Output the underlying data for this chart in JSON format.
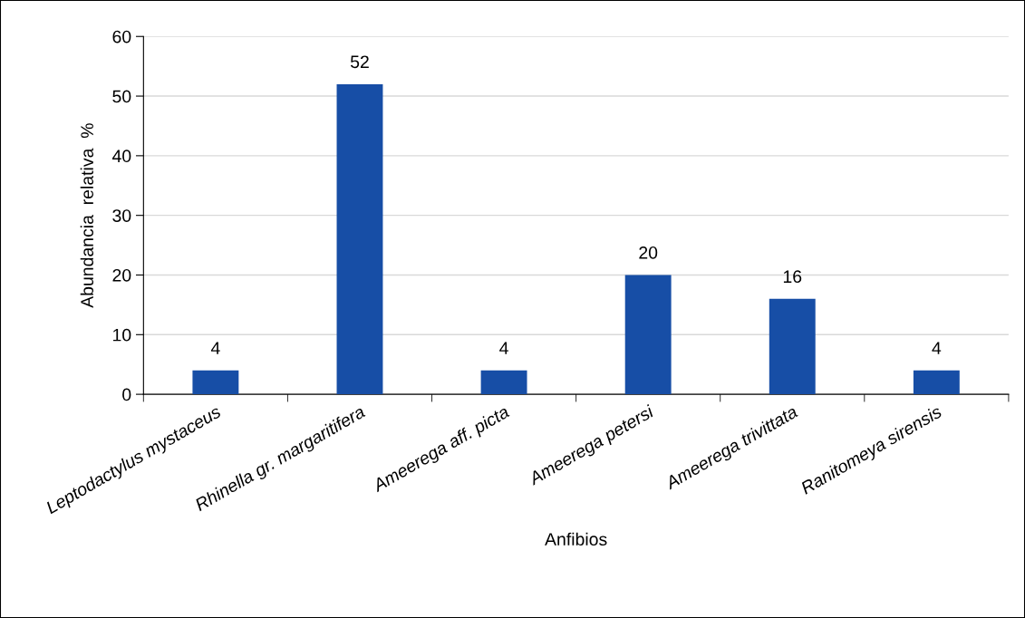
{
  "chart_data": {
    "type": "bar",
    "xlabel": "Anfibios",
    "ylabel": "Abundancia  relativa  %",
    "categories": [
      "Leptodactylus mystaceus",
      "Rhinella gr. margaritifera",
      "Ameerega aff. picta",
      "Ameerega petersi",
      "Ameerega trivittata",
      "Ranitomeya sirensis"
    ],
    "values": [
      4,
      52,
      4,
      20,
      16,
      4
    ],
    "color": "#174ea6",
    "ylim": [
      0,
      60
    ],
    "yticks": [
      0,
      10,
      20,
      30,
      40,
      50,
      60
    ],
    "grid": "y",
    "data_labels": true
  }
}
